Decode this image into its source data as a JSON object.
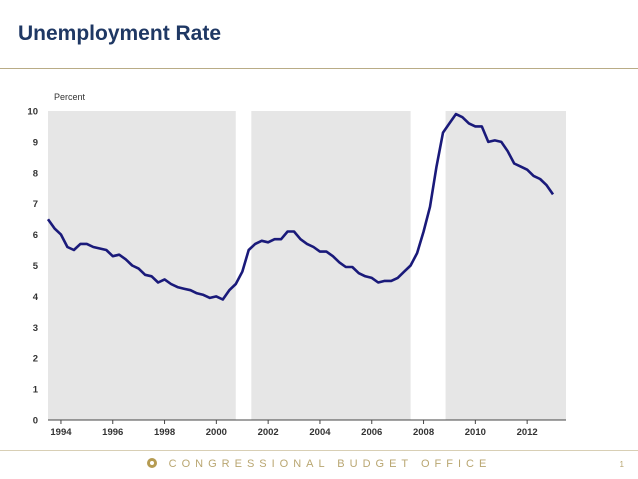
{
  "slide": {
    "title": "Unemployment Rate",
    "footer": "CONGRESSIONAL BUDGET OFFICE",
    "page_number": "1"
  },
  "colors": {
    "title": "#1f3864",
    "line": "#1a1a7a",
    "recession_band": "#e6e6e6",
    "footer": "#b9a671"
  },
  "chart_data": {
    "type": "line",
    "title": "",
    "ylabel": "Percent",
    "xlabel": "",
    "ylim": [
      0,
      10
    ],
    "xlim": [
      1993.5,
      2013.5
    ],
    "y_ticks": [
      "0",
      "1",
      "2",
      "3",
      "4",
      "5",
      "6",
      "7",
      "8",
      "9",
      "10"
    ],
    "x_ticks": [
      "1994",
      "1996",
      "1998",
      "2000",
      "2002",
      "2004",
      "2006",
      "2008",
      "2010",
      "2012"
    ],
    "grid": false,
    "legend": "none",
    "shaded_periods": [
      [
        1993.5,
        2000.75
      ],
      [
        2001.35,
        2007.5
      ],
      [
        2008.85,
        2013.5
      ]
    ],
    "series": [
      {
        "x": [
          1993.5,
          1993.75,
          1994,
          1994.25,
          1994.5,
          1994.75,
          1995,
          1995.25,
          1995.5,
          1995.75,
          1996,
          1996.25,
          1996.5,
          1996.75,
          1997,
          1997.25,
          1997.5,
          1997.75,
          1998,
          1998.25,
          1998.5,
          1998.75,
          1999,
          1999.25,
          1999.5,
          1999.75,
          2000,
          2000.25,
          2000.5,
          2000.75,
          2001,
          2001.25,
          2001.5,
          2001.75,
          2002,
          2002.25,
          2002.5,
          2002.75,
          2003,
          2003.25,
          2003.5,
          2003.75,
          2004,
          2004.25,
          2004.5,
          2004.75,
          2005,
          2005.25,
          2005.5,
          2005.75,
          2006,
          2006.25,
          2006.5,
          2006.75,
          2007,
          2007.25,
          2007.5,
          2007.75,
          2008,
          2008.25,
          2008.5,
          2008.75,
          2009,
          2009.25,
          2009.5,
          2009.75,
          2010,
          2010.25,
          2010.5,
          2010.75,
          2011,
          2011.25,
          2011.5,
          2011.75,
          2012,
          2012.25,
          2012.5,
          2012.75,
          2013
        ],
        "values": [
          6.5,
          6.2,
          6.0,
          5.6,
          5.5,
          5.7,
          5.7,
          5.6,
          5.55,
          5.5,
          5.3,
          5.35,
          5.2,
          5.0,
          4.9,
          4.7,
          4.65,
          4.45,
          4.55,
          4.4,
          4.3,
          4.25,
          4.2,
          4.1,
          4.05,
          3.95,
          4.0,
          3.9,
          4.2,
          4.4,
          4.8,
          5.5,
          5.7,
          5.8,
          5.75,
          5.85,
          5.85,
          6.1,
          6.1,
          5.85,
          5.7,
          5.6,
          5.45,
          5.45,
          5.3,
          5.1,
          4.95,
          4.95,
          4.75,
          4.65,
          4.6,
          4.45,
          4.5,
          4.5,
          4.6,
          4.8,
          5.0,
          5.4,
          6.1,
          6.9,
          8.2,
          9.3,
          9.6,
          9.9,
          9.8,
          9.6,
          9.5,
          9.5,
          9.0,
          9.05,
          9.0,
          8.7,
          8.3,
          8.2,
          8.1,
          7.9,
          7.8,
          7.6,
          7.3
        ]
      }
    ]
  }
}
